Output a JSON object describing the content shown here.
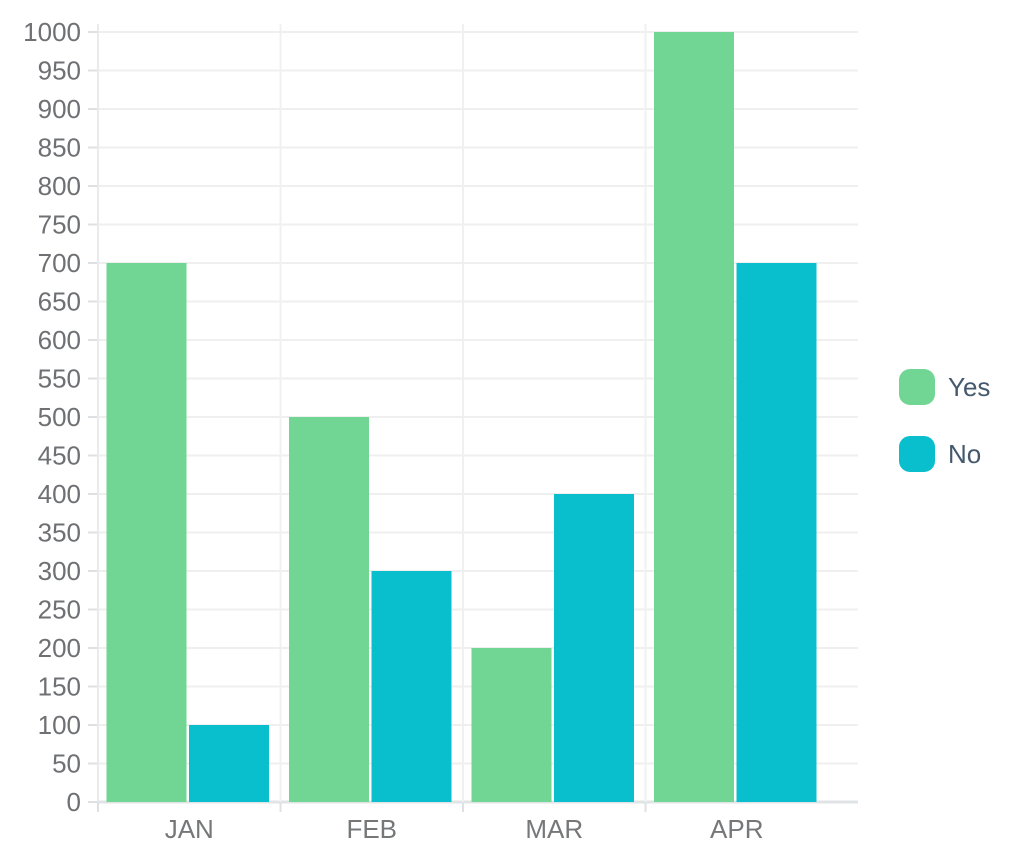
{
  "chart_data": {
    "type": "bar",
    "title": "",
    "xlabel": "",
    "ylabel": "",
    "categories": [
      "JAN",
      "FEB",
      "MAR",
      "APR"
    ],
    "series": [
      {
        "name": "Yes",
        "color": "#71d694",
        "values": [
          700,
          500,
          200,
          1000
        ]
      },
      {
        "name": "No",
        "color": "#0abfcd",
        "values": [
          100,
          300,
          400,
          700
        ]
      }
    ],
    "ylim": [
      0,
      1000
    ],
    "ytick_step": 50,
    "ytick_labels": [
      "0",
      "50",
      "100",
      "150",
      "200",
      "250",
      "300",
      "350",
      "400",
      "450",
      "500",
      "550",
      "600",
      "650",
      "700",
      "750",
      "800",
      "850",
      "900",
      "950",
      "1000"
    ],
    "grid": true,
    "legend_position": "right",
    "background_color": "#ffffff",
    "gridline_color": "#efefef",
    "baseline_color": "#e1e4e6",
    "tick_color": "#dde1e3",
    "y_label_color": "#6e7073",
    "x_label_color": "#757779",
    "legend_text_color": "#45596e"
  }
}
